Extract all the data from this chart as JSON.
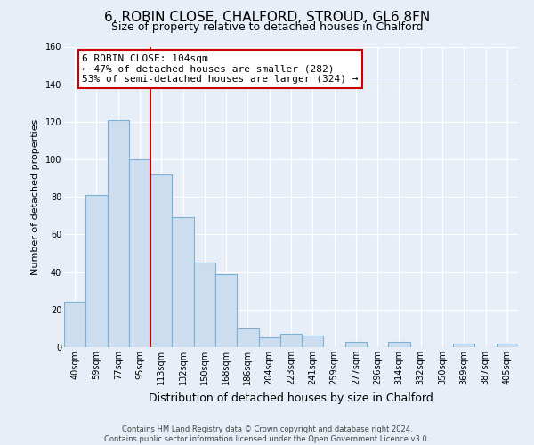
{
  "title": "6, ROBIN CLOSE, CHALFORD, STROUD, GL6 8FN",
  "subtitle": "Size of property relative to detached houses in Chalford",
  "xlabel": "Distribution of detached houses by size in Chalford",
  "ylabel": "Number of detached properties",
  "categories": [
    "40sqm",
    "59sqm",
    "77sqm",
    "95sqm",
    "113sqm",
    "132sqm",
    "150sqm",
    "168sqm",
    "186sqm",
    "204sqm",
    "223sqm",
    "241sqm",
    "259sqm",
    "277sqm",
    "296sqm",
    "314sqm",
    "332sqm",
    "350sqm",
    "369sqm",
    "387sqm",
    "405sqm"
  ],
  "values": [
    24,
    81,
    121,
    100,
    92,
    69,
    45,
    39,
    10,
    5,
    7,
    6,
    0,
    3,
    0,
    3,
    0,
    0,
    2,
    0,
    2
  ],
  "bar_color": "#ccddf0",
  "bar_edge_color": "#7bafd4",
  "red_line_x": 3.5,
  "marker_color": "#cc0000",
  "ylim": [
    0,
    160
  ],
  "yticks": [
    0,
    20,
    40,
    60,
    80,
    100,
    120,
    140,
    160
  ],
  "annotation_title": "6 ROBIN CLOSE: 104sqm",
  "annotation_line1": "← 47% of detached houses are smaller (282)",
  "annotation_line2": "53% of semi-detached houses are larger (324) →",
  "annotation_box_facecolor": "#ffffff",
  "annotation_box_edgecolor": "#cc0000",
  "footer_line1": "Contains HM Land Registry data © Crown copyright and database right 2024.",
  "footer_line2": "Contains public sector information licensed under the Open Government Licence v3.0.",
  "fig_facecolor": "#e8eef7",
  "plot_facecolor": "#e8eef7",
  "grid_color": "#ffffff",
  "title_fontsize": 11,
  "subtitle_fontsize": 9,
  "ylabel_fontsize": 8,
  "xlabel_fontsize": 9,
  "tick_fontsize": 7,
  "annot_fontsize": 8,
  "footer_fontsize": 6
}
